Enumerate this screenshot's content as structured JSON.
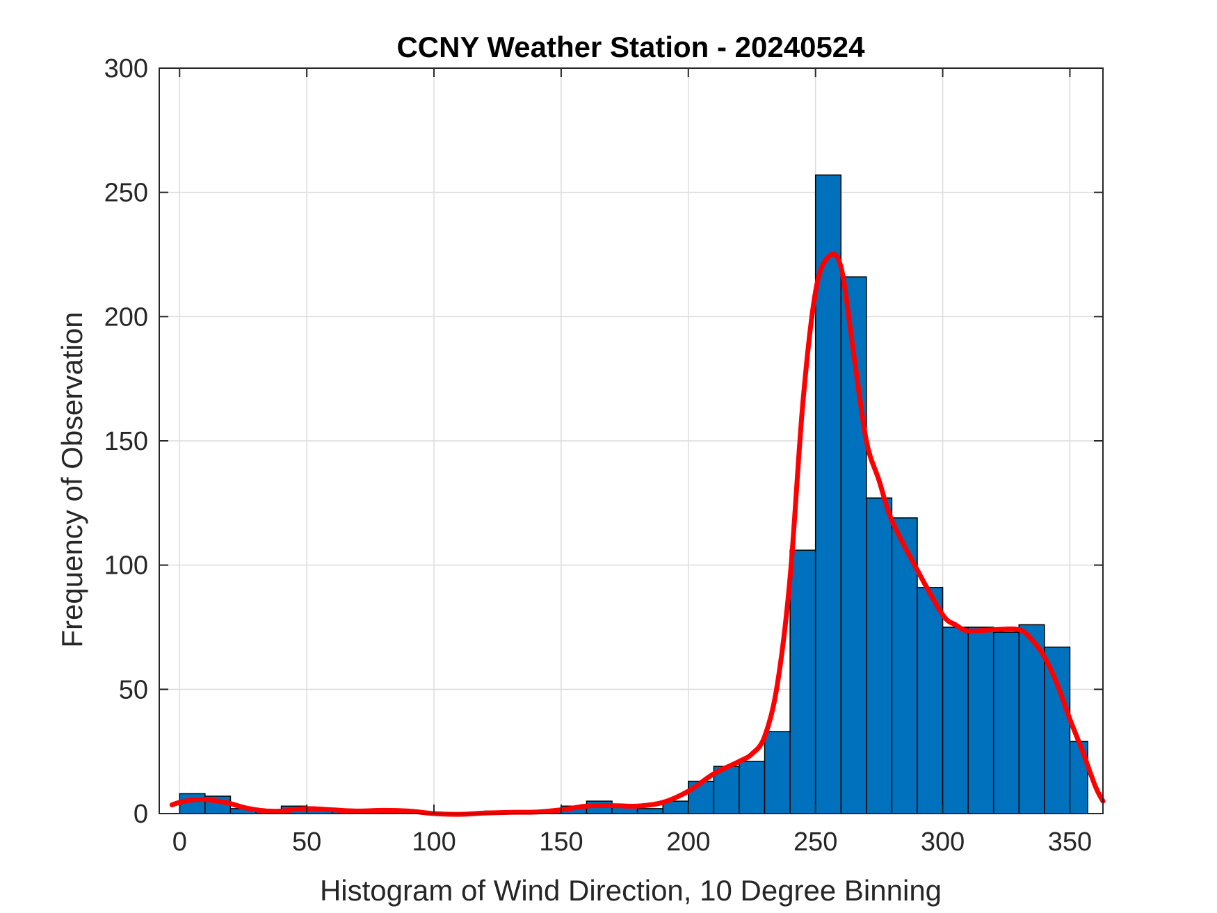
{
  "chart_data": {
    "type": "bar",
    "title": "CCNY Weather Station - 20240524",
    "xlabel": "Histogram of Wind Direction, 10 Degree Binning",
    "ylabel": "Frequency of Observation",
    "xlim": [
      -8,
      363
    ],
    "ylim": [
      0,
      300
    ],
    "xticks": [
      0,
      50,
      100,
      150,
      200,
      250,
      300,
      350
    ],
    "yticks": [
      0,
      50,
      100,
      150,
      200,
      250,
      300
    ],
    "grid": true,
    "bin_width": 10,
    "bins": [
      {
        "start": 0,
        "end": 10,
        "value": 8
      },
      {
        "start": 10,
        "end": 20,
        "value": 7
      },
      {
        "start": 20,
        "end": 30,
        "value": 2
      },
      {
        "start": 30,
        "end": 40,
        "value": 1
      },
      {
        "start": 40,
        "end": 50,
        "value": 3
      },
      {
        "start": 50,
        "end": 60,
        "value": 2
      },
      {
        "start": 60,
        "end": 70,
        "value": 1
      },
      {
        "start": 70,
        "end": 80,
        "value": 1
      },
      {
        "start": 80,
        "end": 90,
        "value": 1
      },
      {
        "start": 90,
        "end": 100,
        "value": 0
      },
      {
        "start": 100,
        "end": 110,
        "value": 0
      },
      {
        "start": 110,
        "end": 120,
        "value": 0
      },
      {
        "start": 120,
        "end": 130,
        "value": 1
      },
      {
        "start": 130,
        "end": 140,
        "value": 1
      },
      {
        "start": 140,
        "end": 150,
        "value": 1
      },
      {
        "start": 150,
        "end": 160,
        "value": 3
      },
      {
        "start": 160,
        "end": 170,
        "value": 5
      },
      {
        "start": 170,
        "end": 180,
        "value": 3
      },
      {
        "start": 180,
        "end": 190,
        "value": 2
      },
      {
        "start": 190,
        "end": 200,
        "value": 5
      },
      {
        "start": 200,
        "end": 210,
        "value": 13
      },
      {
        "start": 210,
        "end": 220,
        "value": 19
      },
      {
        "start": 220,
        "end": 230,
        "value": 21
      },
      {
        "start": 230,
        "end": 240,
        "value": 33
      },
      {
        "start": 240,
        "end": 250,
        "value": 106
      },
      {
        "start": 250,
        "end": 260,
        "value": 257
      },
      {
        "start": 260,
        "end": 270,
        "value": 216
      },
      {
        "start": 270,
        "end": 280,
        "value": 127
      },
      {
        "start": 280,
        "end": 290,
        "value": 119
      },
      {
        "start": 290,
        "end": 300,
        "value": 91
      },
      {
        "start": 300,
        "end": 310,
        "value": 75
      },
      {
        "start": 310,
        "end": 320,
        "value": 75
      },
      {
        "start": 320,
        "end": 330,
        "value": 73
      },
      {
        "start": 330,
        "end": 340,
        "value": 76
      },
      {
        "start": 340,
        "end": 350,
        "value": 67
      },
      {
        "start": 350,
        "end": 357,
        "value": 29
      }
    ],
    "bar_color": "#0072bd",
    "bar_edge_color": "#000000",
    "density_curve": {
      "name": "smoothed density",
      "color": "#ff0000",
      "x": [
        -3,
        0,
        5,
        10,
        15,
        20,
        25,
        30,
        35,
        40,
        50,
        60,
        70,
        80,
        90,
        100,
        110,
        120,
        130,
        140,
        150,
        160,
        170,
        180,
        190,
        200,
        210,
        220,
        225,
        230,
        235,
        240,
        245,
        250,
        255,
        260,
        265,
        270,
        275,
        280,
        290,
        300,
        305,
        310,
        320,
        330,
        335,
        340,
        345,
        350,
        355,
        360,
        363
      ],
      "y": [
        3.5,
        4.5,
        5.5,
        5.6,
        5,
        4,
        2.5,
        1.5,
        1,
        1,
        2,
        1.5,
        1,
        1.3,
        1,
        0,
        -0.3,
        0.2,
        0.5,
        0.6,
        1.5,
        3,
        3.2,
        3,
        4.5,
        9,
        16,
        21,
        24,
        31,
        52,
        95,
        165,
        210,
        224,
        220,
        185,
        150,
        134,
        118,
        98,
        80,
        76,
        73.5,
        74,
        74,
        70,
        63,
        52,
        38,
        25,
        11,
        5
      ]
    }
  }
}
